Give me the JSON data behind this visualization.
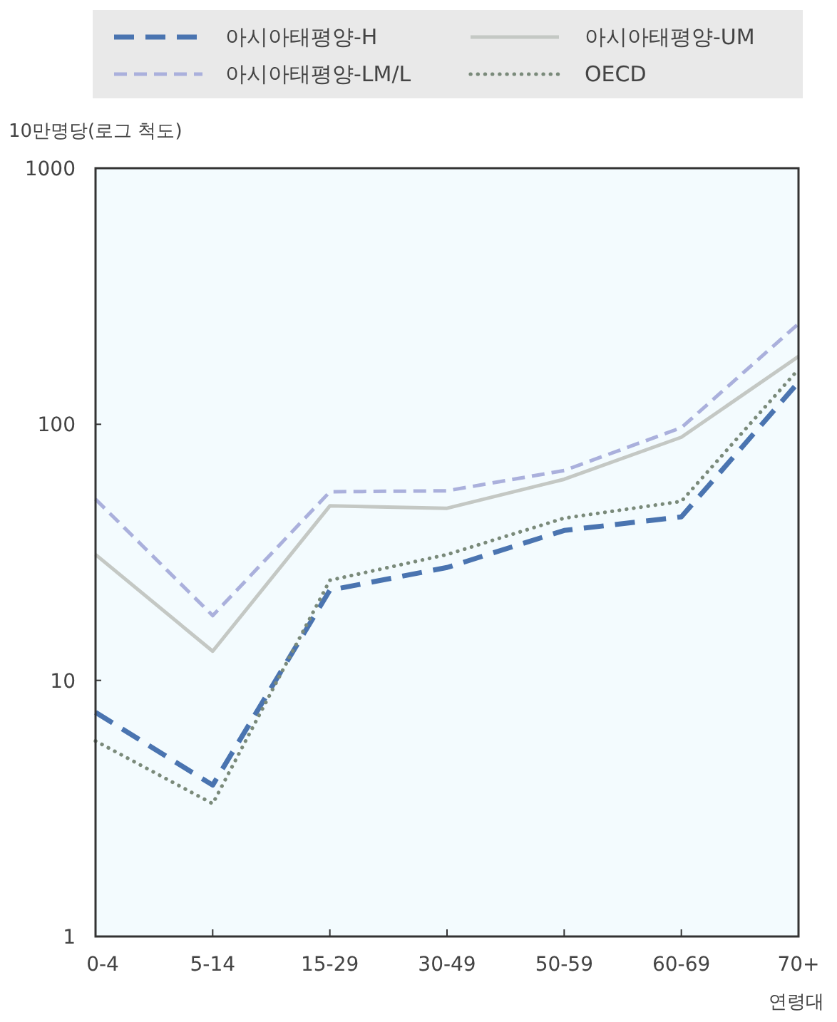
{
  "chart_data": {
    "type": "line",
    "ylabel": "10만명당(로그 척도)",
    "xlabel": "연령대",
    "log": true,
    "ylim": [
      1,
      1000
    ],
    "yticks": [
      1,
      10,
      100,
      1000
    ],
    "grid": false,
    "legend": "top",
    "categories": [
      "0-4",
      "5-14",
      "15-29",
      "30-49",
      "50-59",
      "60-69",
      "70+"
    ],
    "series": [
      {
        "name": "아시아태평양-H",
        "color": "#4a74b0",
        "line_style": "dashed",
        "values": [
          7.5,
          3.9,
          22.5,
          27.6,
          38.5,
          43.5,
          146
        ]
      },
      {
        "name": "아시아태평양-UM",
        "color": "#c4c8c4",
        "line_style": "solid",
        "values": [
          31,
          13,
          48,
          47,
          61,
          89,
          184
        ]
      },
      {
        "name": "아시아태평양-LM/L",
        "color": "#aab0dc",
        "line_style": "dashed",
        "values": [
          51,
          17.9,
          54.5,
          55,
          66,
          97,
          247
        ]
      },
      {
        "name": "OECD",
        "color": "#7a8a7a",
        "line_style": "dotted",
        "values": [
          5.8,
          3.3,
          24.6,
          31,
          43,
          50,
          164
        ]
      }
    ]
  }
}
